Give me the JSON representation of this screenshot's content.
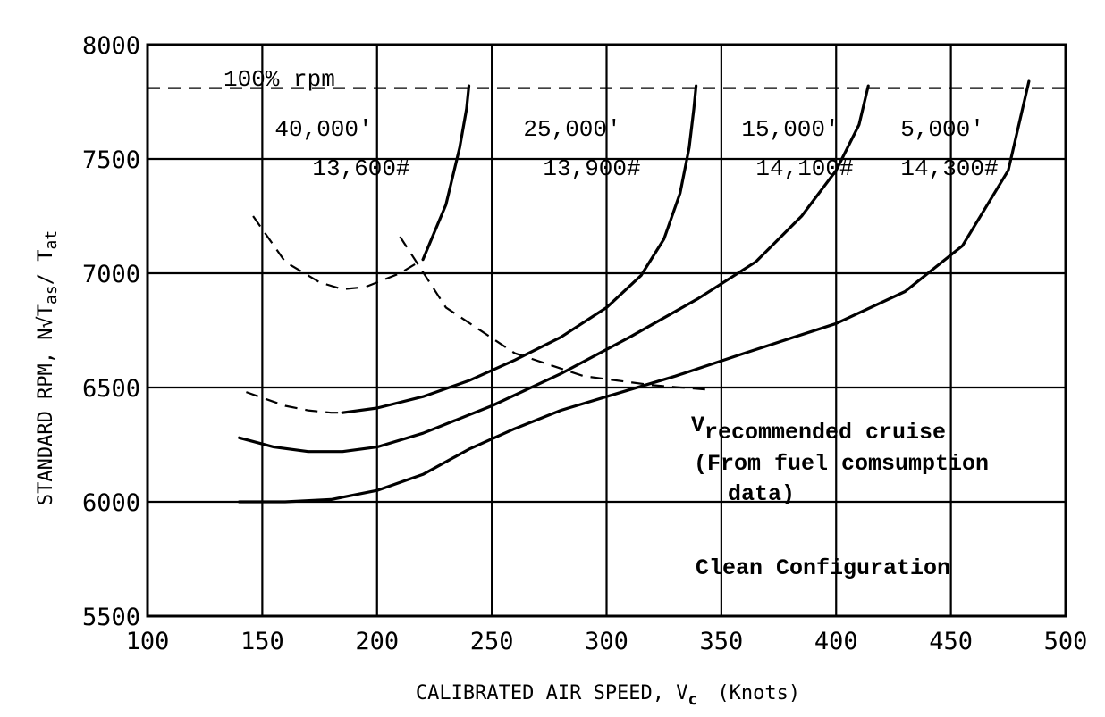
{
  "chart_data": {
    "type": "line",
    "xlabel_main": "CALIBRATED AIR SPEED, V",
    "xlabel_sub": "c",
    "xlabel_unit": "(Knots)",
    "ylabel": "STANDARD RPM, N√T",
    "ylabel_sub1": "as",
    "ylabel_sep": "/ T",
    "ylabel_sub2": "at",
    "xlim": [
      100,
      500
    ],
    "ylim": [
      5500,
      8000
    ],
    "x_ticks": [
      100,
      150,
      200,
      250,
      300,
      350,
      400,
      450,
      500
    ],
    "y_ticks": [
      5500,
      6000,
      6500,
      7000,
      7500,
      8000
    ],
    "grid": true,
    "reference_line": {
      "label": "100% rpm",
      "y": 7810
    },
    "series": [
      {
        "name": "40,000' 13,600#",
        "altitude_label": "40,000'",
        "weight_label": "13,600#",
        "dashed_x": [
          143,
          150,
          160,
          170,
          180,
          185
        ],
        "dashed_y": [
          6480,
          6455,
          6420,
          6400,
          6390,
          6390
        ],
        "x": [
          185,
          200,
          220,
          240,
          260,
          280,
          300,
          315,
          325,
          332,
          336,
          338,
          339
        ],
        "y": [
          6390,
          6410,
          6460,
          6530,
          6620,
          6720,
          6850,
          6990,
          7150,
          7350,
          7550,
          7720,
          7820
        ]
      },
      {
        "name": "25,000' 13,900#",
        "altitude_label": "25,000'",
        "weight_label": "13,900#",
        "x": [
          140,
          155,
          170,
          185,
          200,
          220,
          250,
          280,
          310,
          340,
          365,
          385,
          400,
          410,
          414
        ],
        "y": [
          6280,
          6240,
          6220,
          6220,
          6240,
          6300,
          6420,
          6560,
          6720,
          6890,
          7050,
          7250,
          7450,
          7650,
          7820
        ]
      },
      {
        "name": "15,000' 14,100#",
        "altitude_label": "15,000'",
        "weight_label": "14,100#",
        "x": [
          140,
          160,
          180,
          200,
          220,
          240,
          260,
          280,
          300,
          330,
          360,
          400,
          430,
          455,
          475,
          484
        ],
        "y": [
          6000,
          6000,
          6010,
          6050,
          6120,
          6230,
          6320,
          6400,
          6460,
          6550,
          6650,
          6780,
          6920,
          7120,
          7450,
          7840
        ]
      },
      {
        "name": "5,000' 14,300#",
        "altitude_label": "5,000'",
        "weight_label": "14,300#"
      }
    ],
    "upper_curve": {
      "x": [
        146,
        160,
        175,
        185,
        195,
        210,
        220
      ],
      "y": [
        7250,
        7050,
        6960,
        6930,
        6940,
        7000,
        7060
      ]
    },
    "upper_curve_solid": {
      "x": [
        220,
        230,
        236,
        239,
        240
      ],
      "y": [
        7060,
        7300,
        7550,
        7720,
        7820
      ]
    },
    "recommended_cruise_line": {
      "x": [
        210,
        230,
        260,
        290,
        320,
        345
      ],
      "y": [
        7160,
        6850,
        6650,
        6550,
        6510,
        6490
      ]
    },
    "annotations": {
      "recommended_v": "V",
      "recommended_sub": "recommended cruise",
      "fuel_line1": "(From fuel comsumption",
      "fuel_line2": "data)",
      "clean": "Clean Configuration"
    }
  }
}
